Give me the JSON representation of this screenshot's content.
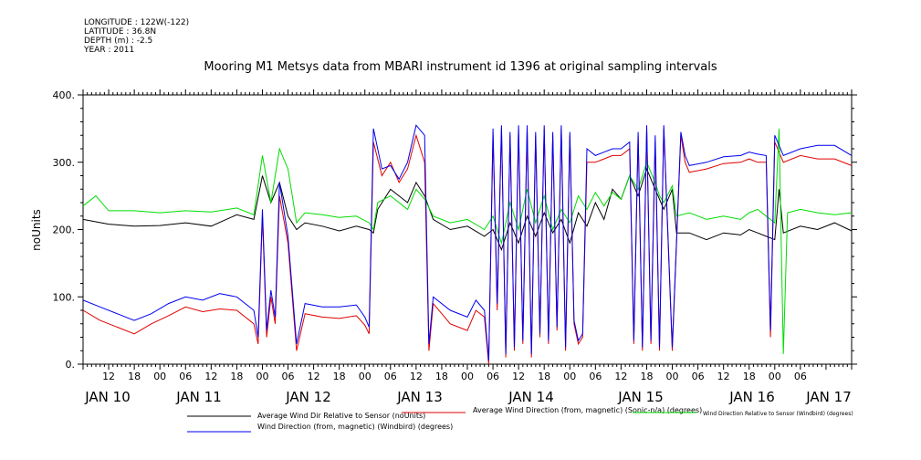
{
  "header": {
    "longitude": "LONGITUDE : 122W(-122)",
    "latitude": "LATITUDE : 36.8N",
    "depth": "DEPTH (m) : -2.5",
    "year": "YEAR : 2011"
  },
  "chart_data": {
    "type": "line",
    "title": "Mooring M1 Metsys data from MBARI instrument id 1396 at original sampling intervals",
    "ylabel": "noUnits",
    "ylim": [
      0,
      400
    ],
    "y_ticks": [
      "0.",
      "100.",
      "200.",
      "300.",
      "400."
    ],
    "xlim_hours": [
      0,
      180
    ],
    "hour_tick_labels": [
      "12",
      "18",
      "00",
      "06",
      "12",
      "18",
      "00",
      "06",
      "12",
      "18",
      "00",
      "06",
      "12",
      "18",
      "00",
      "06",
      "12",
      "18",
      "00",
      "06",
      "12",
      "18",
      "00",
      "06",
      "12",
      "18",
      "00",
      "06"
    ],
    "day_labels": [
      "JAN 10",
      "JAN 11",
      "JAN 12",
      "JAN 13",
      "JAN 14",
      "JAN 15",
      "JAN 16",
      "JAN 17"
    ],
    "x_tick_note": "x axis = time in hours from JAN 10 06:00, 2011",
    "series": [
      {
        "name": "Average Wind Dir Relative to Sensor (noUnits)",
        "color": "#000000",
        "points": [
          [
            0,
            215
          ],
          [
            6,
            208
          ],
          [
            12,
            205
          ],
          [
            18,
            206
          ],
          [
            24,
            210
          ],
          [
            30,
            205
          ],
          [
            36,
            222
          ],
          [
            40,
            215
          ],
          [
            42,
            280
          ],
          [
            44,
            240
          ],
          [
            46,
            270
          ],
          [
            48,
            220
          ],
          [
            50,
            200
          ],
          [
            52,
            210
          ],
          [
            56,
            205
          ],
          [
            60,
            198
          ],
          [
            64,
            205
          ],
          [
            67,
            200
          ],
          [
            68,
            195
          ],
          [
            69,
            230
          ],
          [
            72,
            260
          ],
          [
            76,
            240
          ],
          [
            78,
            270
          ],
          [
            80,
            250
          ],
          [
            82,
            215
          ],
          [
            86,
            200
          ],
          [
            90,
            205
          ],
          [
            94,
            190
          ],
          [
            96,
            200
          ],
          [
            98,
            170
          ],
          [
            100,
            210
          ],
          [
            102,
            180
          ],
          [
            104,
            220
          ],
          [
            106,
            190
          ],
          [
            108,
            225
          ],
          [
            110,
            195
          ],
          [
            112,
            215
          ],
          [
            114,
            180
          ],
          [
            116,
            225
          ],
          [
            118,
            205
          ],
          [
            120,
            240
          ],
          [
            122,
            215
          ],
          [
            124,
            260
          ],
          [
            126,
            245
          ],
          [
            128,
            280
          ],
          [
            130,
            250
          ],
          [
            132,
            290
          ],
          [
            134,
            260
          ],
          [
            135,
            245
          ],
          [
            136,
            230
          ],
          [
            138,
            260
          ],
          [
            139,
            195
          ],
          [
            142,
            195
          ],
          [
            146,
            185
          ],
          [
            150,
            195
          ],
          [
            154,
            192
          ],
          [
            156,
            200
          ],
          [
            158,
            195
          ],
          [
            160,
            190
          ],
          [
            162,
            185
          ],
          [
            163,
            260
          ],
          [
            164,
            195
          ],
          [
            168,
            205
          ],
          [
            172,
            200
          ],
          [
            176,
            210
          ],
          [
            180,
            198
          ]
        ]
      },
      {
        "name": "Average Wind Direction (from, magnetic) (Sonic-n/a) (degrees)",
        "color": "#e00000",
        "points": [
          [
            0,
            80
          ],
          [
            4,
            65
          ],
          [
            8,
            55
          ],
          [
            12,
            45
          ],
          [
            16,
            60
          ],
          [
            20,
            72
          ],
          [
            24,
            85
          ],
          [
            28,
            78
          ],
          [
            32,
            82
          ],
          [
            36,
            80
          ],
          [
            40,
            60
          ],
          [
            41,
            30
          ],
          [
            42,
            220
          ],
          [
            43,
            40
          ],
          [
            44,
            100
          ],
          [
            45,
            60
          ],
          [
            46,
            250
          ],
          [
            48,
            180
          ],
          [
            50,
            20
          ],
          [
            52,
            75
          ],
          [
            56,
            70
          ],
          [
            60,
            68
          ],
          [
            64,
            72
          ],
          [
            66,
            58
          ],
          [
            67,
            45
          ],
          [
            68,
            330
          ],
          [
            70,
            280
          ],
          [
            72,
            300
          ],
          [
            74,
            270
          ],
          [
            76,
            290
          ],
          [
            78,
            340
          ],
          [
            80,
            300
          ],
          [
            81,
            20
          ],
          [
            82,
            90
          ],
          [
            86,
            60
          ],
          [
            90,
            50
          ],
          [
            92,
            80
          ],
          [
            94,
            70
          ],
          [
            95,
            0
          ],
          [
            96,
            340
          ],
          [
            97,
            80
          ],
          [
            98,
            350
          ],
          [
            99,
            10
          ],
          [
            100,
            340
          ],
          [
            101,
            20
          ],
          [
            102,
            350
          ],
          [
            103,
            30
          ],
          [
            104,
            350
          ],
          [
            105,
            10
          ],
          [
            106,
            340
          ],
          [
            107,
            40
          ],
          [
            108,
            350
          ],
          [
            109,
            30
          ],
          [
            110,
            340
          ],
          [
            111,
            50
          ],
          [
            112,
            350
          ],
          [
            113,
            20
          ],
          [
            114,
            340
          ],
          [
            115,
            60
          ],
          [
            116,
            30
          ],
          [
            117,
            40
          ],
          [
            118,
            300
          ],
          [
            120,
            300
          ],
          [
            122,
            305
          ],
          [
            124,
            310
          ],
          [
            126,
            310
          ],
          [
            128,
            320
          ],
          [
            129,
            30
          ],
          [
            130,
            340
          ],
          [
            131,
            20
          ],
          [
            132,
            350
          ],
          [
            133,
            30
          ],
          [
            134,
            330
          ],
          [
            135,
            20
          ],
          [
            136,
            350
          ],
          [
            138,
            20
          ],
          [
            140,
            340
          ],
          [
            141,
            300
          ],
          [
            142,
            285
          ],
          [
            146,
            290
          ],
          [
            150,
            298
          ],
          [
            154,
            300
          ],
          [
            156,
            305
          ],
          [
            158,
            300
          ],
          [
            160,
            300
          ],
          [
            161,
            40
          ],
          [
            162,
            330
          ],
          [
            164,
            300
          ],
          [
            168,
            310
          ],
          [
            172,
            305
          ],
          [
            176,
            305
          ],
          [
            180,
            295
          ]
        ]
      },
      {
        "name": "Wind Direction Relative to Sensor (Windbird) (degrees)",
        "color": "#00dd00",
        "points": [
          [
            0,
            235
          ],
          [
            3,
            250
          ],
          [
            6,
            228
          ],
          [
            12,
            228
          ],
          [
            18,
            225
          ],
          [
            24,
            228
          ],
          [
            30,
            226
          ],
          [
            36,
            232
          ],
          [
            40,
            222
          ],
          [
            42,
            310
          ],
          [
            44,
            240
          ],
          [
            46,
            320
          ],
          [
            48,
            290
          ],
          [
            50,
            210
          ],
          [
            52,
            225
          ],
          [
            56,
            222
          ],
          [
            60,
            218
          ],
          [
            64,
            220
          ],
          [
            67,
            210
          ],
          [
            68,
            200
          ],
          [
            69,
            240
          ],
          [
            72,
            250
          ],
          [
            76,
            230
          ],
          [
            78,
            260
          ],
          [
            80,
            245
          ],
          [
            82,
            220
          ],
          [
            86,
            210
          ],
          [
            90,
            215
          ],
          [
            94,
            200
          ],
          [
            96,
            220
          ],
          [
            98,
            180
          ],
          [
            100,
            240
          ],
          [
            102,
            200
          ],
          [
            104,
            260
          ],
          [
            106,
            210
          ],
          [
            108,
            250
          ],
          [
            110,
            200
          ],
          [
            112,
            230
          ],
          [
            114,
            210
          ],
          [
            116,
            250
          ],
          [
            118,
            230
          ],
          [
            120,
            255
          ],
          [
            122,
            235
          ],
          [
            124,
            255
          ],
          [
            126,
            245
          ],
          [
            128,
            280
          ],
          [
            130,
            260
          ],
          [
            132,
            300
          ],
          [
            134,
            270
          ],
          [
            135,
            250
          ],
          [
            136,
            240
          ],
          [
            138,
            265
          ],
          [
            139,
            220
          ],
          [
            142,
            225
          ],
          [
            146,
            215
          ],
          [
            150,
            220
          ],
          [
            154,
            215
          ],
          [
            156,
            225
          ],
          [
            158,
            230
          ],
          [
            160,
            220
          ],
          [
            162,
            210
          ],
          [
            163,
            350
          ],
          [
            164,
            15
          ],
          [
            165,
            225
          ],
          [
            168,
            230
          ],
          [
            172,
            225
          ],
          [
            176,
            222
          ],
          [
            180,
            225
          ]
        ]
      },
      {
        "name": "Wind Direction (from, magnetic) (Windbird) (degrees)",
        "color": "#0000ee",
        "points": [
          [
            0,
            95
          ],
          [
            4,
            85
          ],
          [
            8,
            75
          ],
          [
            12,
            65
          ],
          [
            16,
            75
          ],
          [
            20,
            90
          ],
          [
            24,
            100
          ],
          [
            28,
            95
          ],
          [
            32,
            105
          ],
          [
            36,
            100
          ],
          [
            40,
            80
          ],
          [
            41,
            40
          ],
          [
            42,
            230
          ],
          [
            43,
            50
          ],
          [
            44,
            110
          ],
          [
            45,
            70
          ],
          [
            46,
            270
          ],
          [
            48,
            190
          ],
          [
            50,
            30
          ],
          [
            52,
            90
          ],
          [
            56,
            85
          ],
          [
            60,
            85
          ],
          [
            64,
            88
          ],
          [
            66,
            70
          ],
          [
            67,
            55
          ],
          [
            68,
            350
          ],
          [
            70,
            290
          ],
          [
            72,
            295
          ],
          [
            74,
            275
          ],
          [
            76,
            300
          ],
          [
            78,
            355
          ],
          [
            80,
            340
          ],
          [
            81,
            30
          ],
          [
            82,
            100
          ],
          [
            86,
            80
          ],
          [
            90,
            70
          ],
          [
            92,
            95
          ],
          [
            94,
            80
          ],
          [
            95,
            5
          ],
          [
            96,
            350
          ],
          [
            97,
            90
          ],
          [
            98,
            355
          ],
          [
            99,
            15
          ],
          [
            100,
            345
          ],
          [
            101,
            25
          ],
          [
            102,
            355
          ],
          [
            103,
            35
          ],
          [
            104,
            355
          ],
          [
            105,
            15
          ],
          [
            106,
            345
          ],
          [
            107,
            45
          ],
          [
            108,
            355
          ],
          [
            109,
            35
          ],
          [
            110,
            345
          ],
          [
            111,
            55
          ],
          [
            112,
            355
          ],
          [
            113,
            25
          ],
          [
            114,
            345
          ],
          [
            115,
            65
          ],
          [
            116,
            35
          ],
          [
            117,
            45
          ],
          [
            118,
            320
          ],
          [
            120,
            310
          ],
          [
            122,
            315
          ],
          [
            124,
            320
          ],
          [
            126,
            320
          ],
          [
            128,
            330
          ],
          [
            129,
            35
          ],
          [
            130,
            345
          ],
          [
            131,
            25
          ],
          [
            132,
            355
          ],
          [
            133,
            35
          ],
          [
            134,
            340
          ],
          [
            135,
            25
          ],
          [
            136,
            355
          ],
          [
            138,
            25
          ],
          [
            140,
            345
          ],
          [
            141,
            310
          ],
          [
            142,
            295
          ],
          [
            146,
            300
          ],
          [
            150,
            308
          ],
          [
            154,
            310
          ],
          [
            156,
            315
          ],
          [
            158,
            312
          ],
          [
            160,
            310
          ],
          [
            161,
            50
          ],
          [
            162,
            340
          ],
          [
            164,
            310
          ],
          [
            168,
            320
          ],
          [
            172,
            325
          ],
          [
            176,
            325
          ],
          [
            180,
            310
          ]
        ]
      }
    ],
    "legend_placement": "bottom"
  }
}
